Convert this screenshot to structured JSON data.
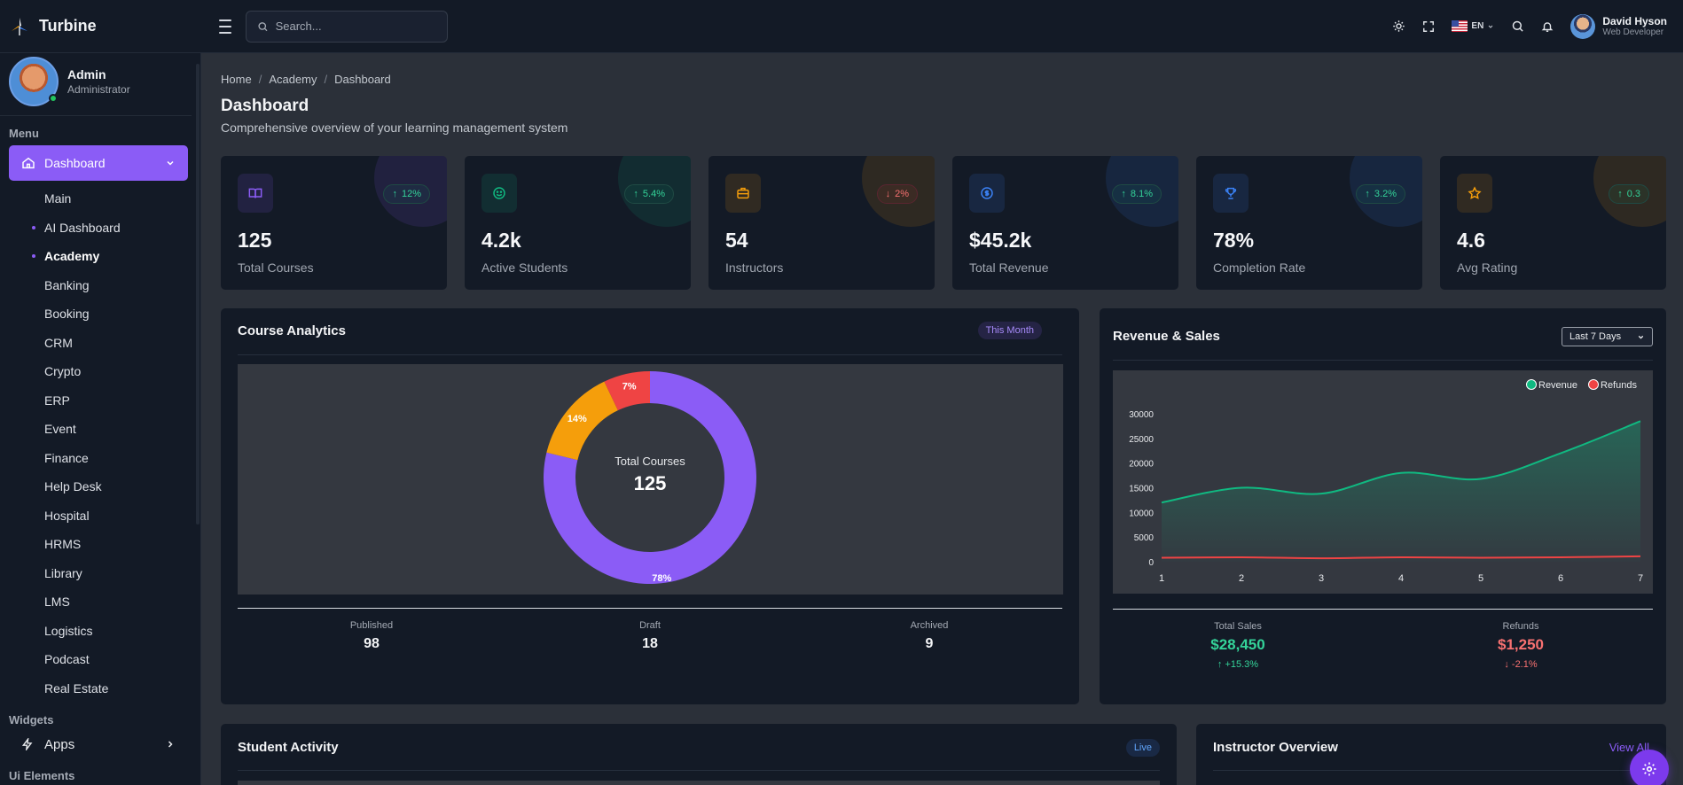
{
  "app": {
    "name": "Turbine"
  },
  "search": {
    "placeholder": "Search..."
  },
  "top": {
    "lang": "EN",
    "user_name": "David Hyson",
    "user_role": "Web Developer"
  },
  "profile": {
    "name": "Admin",
    "role": "Administrator"
  },
  "sidebar": {
    "menu_label": "Menu",
    "active": "Dashboard",
    "items": [
      "Main",
      "AI Dashboard",
      "Academy",
      "Banking",
      "Booking",
      "CRM",
      "Crypto",
      "ERP",
      "Event",
      "Finance",
      "Help Desk",
      "Hospital",
      "HRMS",
      "Library",
      "LMS",
      "Logistics",
      "Podcast",
      "Real Estate"
    ],
    "widgets_label": "Widgets",
    "apps_label": "Apps",
    "ui_label": "Ui Elements"
  },
  "breadcrumb": [
    "Home",
    "Academy",
    "Dashboard"
  ],
  "page": {
    "title": "Dashboard",
    "subtitle": "Comprehensive overview of your learning management system"
  },
  "stats": [
    {
      "value": "125",
      "label": "Total Courses",
      "change": "12%",
      "dir": "up",
      "icon": "book-icon",
      "color": "#8b5cf6"
    },
    {
      "value": "4.2k",
      "label": "Active Students",
      "change": "5.4%",
      "dir": "up",
      "icon": "smile-icon",
      "color": "#10b981"
    },
    {
      "value": "54",
      "label": "Instructors",
      "change": "2%",
      "dir": "down",
      "icon": "briefcase-icon",
      "color": "#f59e0b"
    },
    {
      "value": "$45.2k",
      "label": "Total Revenue",
      "change": "8.1%",
      "dir": "up",
      "icon": "dollar-icon",
      "color": "#3b82f6"
    },
    {
      "value": "78%",
      "label": "Completion Rate",
      "change": "3.2%",
      "dir": "up",
      "icon": "trophy-icon",
      "color": "#3b82f6"
    },
    {
      "value": "4.6",
      "label": "Avg Rating",
      "change": "0.3",
      "dir": "up",
      "icon": "star-icon",
      "color": "#f59e0b"
    }
  ],
  "course_analytics": {
    "title": "Course Analytics",
    "badge": "This Month",
    "center_label": "Total Courses",
    "center_value": "125",
    "summary": [
      {
        "label": "Published",
        "value": "98"
      },
      {
        "label": "Draft",
        "value": "18"
      },
      {
        "label": "Archived",
        "value": "9"
      }
    ]
  },
  "revenue_sales": {
    "title": "Revenue & Sales",
    "range": "Last 7 Days",
    "total_sales_label": "Total Sales",
    "total_sales": "$28,450",
    "total_sales_change": "+15.3%",
    "refunds_label": "Refunds",
    "refunds": "$1,250",
    "refunds_change": "-2.1%"
  },
  "student_activity": {
    "title": "Student Activity",
    "badge": "Live"
  },
  "instructor_overview": {
    "title": "Instructor Overview",
    "link": "View All"
  },
  "chart_data": [
    {
      "type": "pie",
      "categories": [
        "Published",
        "Draft",
        "Archived"
      ],
      "values": [
        78,
        14,
        7
      ],
      "labels": [
        "78%",
        "14%",
        "7%"
      ],
      "colors": [
        "#8b5cf6",
        "#f59e0b",
        "#ef4444"
      ]
    },
    {
      "type": "area",
      "x": [
        1,
        2,
        3,
        4,
        5,
        6,
        7
      ],
      "series": [
        {
          "name": "Revenue",
          "values": [
            12000,
            15000,
            13800,
            18000,
            16800,
            22000,
            28500
          ],
          "color": "#10b981"
        },
        {
          "name": "Refunds",
          "values": [
            800,
            900,
            700,
            900,
            800,
            900,
            1100
          ],
          "color": "#ef4444"
        }
      ],
      "yticks": [
        0,
        5000,
        10000,
        15000,
        20000,
        25000,
        30000
      ],
      "ylim": [
        0,
        30000
      ],
      "legend": "top-right"
    }
  ]
}
